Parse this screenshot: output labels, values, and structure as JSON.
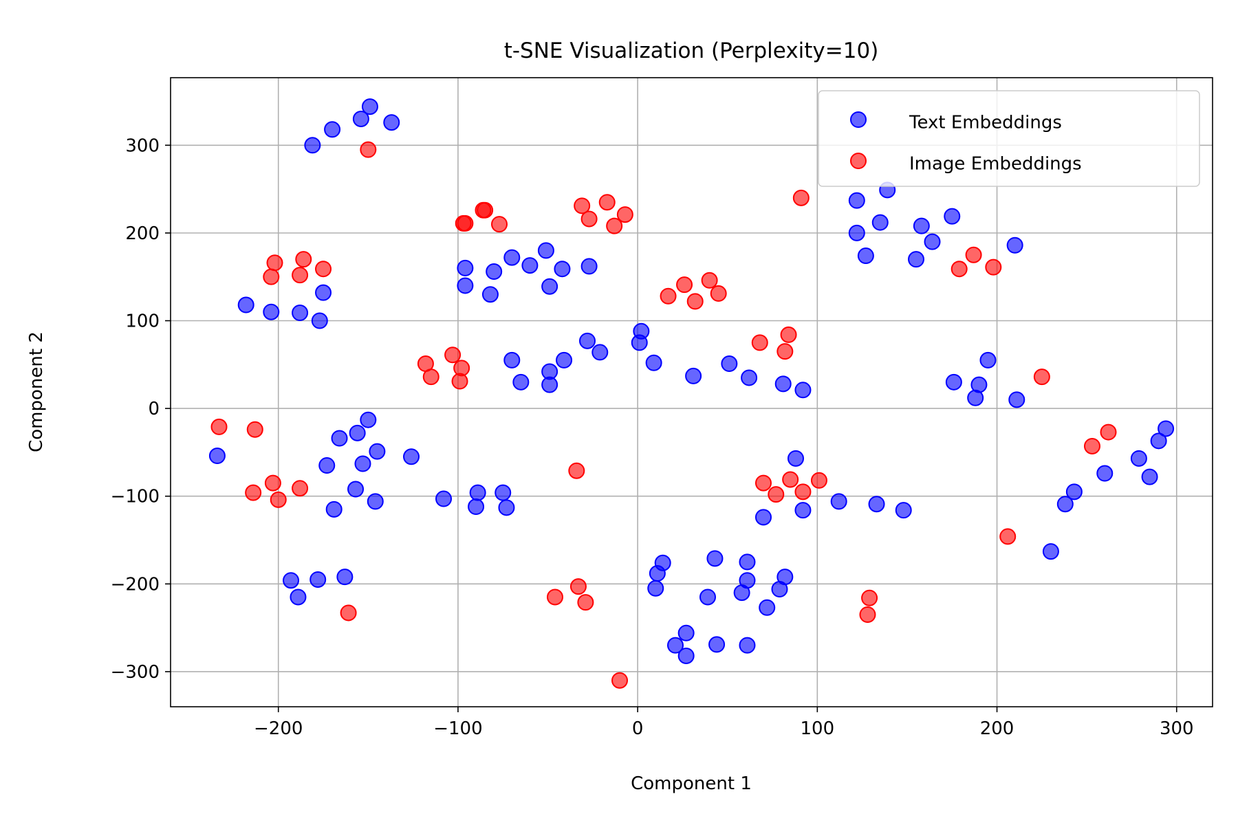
{
  "chart_data": {
    "type": "scatter",
    "title": "t-SNE Visualization (Perplexity=10)",
    "xlabel": "Component 1",
    "ylabel": "Component 2",
    "xlim": [
      -260,
      320
    ],
    "ylim": [
      -340,
      377
    ],
    "x_ticks": [
      -200,
      -100,
      0,
      100,
      200,
      300
    ],
    "y_ticks": [
      -300,
      -200,
      -100,
      0,
      100,
      200,
      300
    ],
    "x_tick_labels": [
      "−200",
      "−100",
      "0",
      "100",
      "200",
      "300"
    ],
    "y_tick_labels": [
      "−300",
      "−200",
      "−100",
      "0",
      "100",
      "200",
      "300"
    ],
    "grid": true,
    "legend_position": "top-right",
    "series": [
      {
        "name": "Text Embeddings",
        "color": "#0000ff",
        "points": [
          [
            -149,
            344
          ],
          [
            -154,
            330
          ],
          [
            -137,
            326
          ],
          [
            -170,
            318
          ],
          [
            -181,
            300
          ],
          [
            -218,
            118
          ],
          [
            -204,
            110
          ],
          [
            -175,
            132
          ],
          [
            -188,
            109
          ],
          [
            -177,
            100
          ],
          [
            -96,
            160
          ],
          [
            -96,
            140
          ],
          [
            -80,
            156
          ],
          [
            -70,
            172
          ],
          [
            -82,
            130
          ],
          [
            -60,
            163
          ],
          [
            -51,
            180
          ],
          [
            -42,
            159
          ],
          [
            -49,
            139
          ],
          [
            -27,
            162
          ],
          [
            -70,
            55
          ],
          [
            -65,
            30
          ],
          [
            -49,
            42
          ],
          [
            -49,
            27
          ],
          [
            -41,
            55
          ],
          [
            -28,
            77
          ],
          [
            -21,
            64
          ],
          [
            2,
            88
          ],
          [
            1,
            75
          ],
          [
            9,
            52
          ],
          [
            31,
            37
          ],
          [
            51,
            51
          ],
          [
            62,
            35
          ],
          [
            81,
            28
          ],
          [
            92,
            21
          ],
          [
            122,
            237
          ],
          [
            139,
            249
          ],
          [
            122,
            200
          ],
          [
            135,
            212
          ],
          [
            127,
            174
          ],
          [
            158,
            208
          ],
          [
            164,
            190
          ],
          [
            155,
            170
          ],
          [
            175,
            219
          ],
          [
            210,
            186
          ],
          [
            176,
            30
          ],
          [
            190,
            27
          ],
          [
            188,
            12
          ],
          [
            195,
            55
          ],
          [
            211,
            10
          ],
          [
            -234,
            -54
          ],
          [
            -166,
            -34
          ],
          [
            -156,
            -28
          ],
          [
            -150,
            -13
          ],
          [
            -153,
            -63
          ],
          [
            -145,
            -49
          ],
          [
            -173,
            -65
          ],
          [
            -157,
            -92
          ],
          [
            -146,
            -106
          ],
          [
            -126,
            -55
          ],
          [
            -169,
            -115
          ],
          [
            -108,
            -103
          ],
          [
            -89,
            -96
          ],
          [
            -90,
            -112
          ],
          [
            -75,
            -96
          ],
          [
            -73,
            -113
          ],
          [
            88,
            -57
          ],
          [
            92,
            -116
          ],
          [
            112,
            -106
          ],
          [
            133,
            -109
          ],
          [
            148,
            -116
          ],
          [
            70,
            -124
          ],
          [
            -193,
            -196
          ],
          [
            -189,
            -215
          ],
          [
            -178,
            -195
          ],
          [
            -163,
            -192
          ],
          [
            14,
            -176
          ],
          [
            11,
            -188
          ],
          [
            10,
            -205
          ],
          [
            43,
            -171
          ],
          [
            61,
            -175
          ],
          [
            61,
            -196
          ],
          [
            58,
            -210
          ],
          [
            39,
            -215
          ],
          [
            79,
            -206
          ],
          [
            82,
            -192
          ],
          [
            72,
            -227
          ],
          [
            27,
            -256
          ],
          [
            21,
            -270
          ],
          [
            27,
            -282
          ],
          [
            44,
            -269
          ],
          [
            61,
            -270
          ],
          [
            230,
            -163
          ],
          [
            238,
            -109
          ],
          [
            243,
            -95
          ],
          [
            260,
            -74
          ],
          [
            279,
            -57
          ],
          [
            285,
            -78
          ],
          [
            290,
            -37
          ],
          [
            294,
            -23
          ]
        ]
      },
      {
        "name": "Image Embeddings",
        "color": "#ff0000",
        "points": [
          [
            -150,
            295
          ],
          [
            -202,
            166
          ],
          [
            -204,
            150
          ],
          [
            -186,
            170
          ],
          [
            -188,
            152
          ],
          [
            -175,
            159
          ],
          [
            -97,
            211
          ],
          [
            -96,
            211
          ],
          [
            -86,
            226
          ],
          [
            -85,
            226
          ],
          [
            -77,
            210
          ],
          [
            -31,
            231
          ],
          [
            -27,
            216
          ],
          [
            -17,
            235
          ],
          [
            -13,
            208
          ],
          [
            -7,
            221
          ],
          [
            17,
            128
          ],
          [
            26,
            141
          ],
          [
            32,
            122
          ],
          [
            40,
            146
          ],
          [
            45,
            131
          ],
          [
            -118,
            51
          ],
          [
            -115,
            36
          ],
          [
            -103,
            61
          ],
          [
            -98,
            46
          ],
          [
            -99,
            31
          ],
          [
            68,
            75
          ],
          [
            84,
            84
          ],
          [
            82,
            65
          ],
          [
            91,
            240
          ],
          [
            187,
            175
          ],
          [
            179,
            159
          ],
          [
            198,
            161
          ],
          [
            225,
            36
          ],
          [
            -233,
            -21
          ],
          [
            -213,
            -24
          ],
          [
            -214,
            -96
          ],
          [
            -203,
            -85
          ],
          [
            -200,
            -104
          ],
          [
            -188,
            -91
          ],
          [
            -161,
            -233
          ],
          [
            -34,
            -71
          ],
          [
            -46,
            -215
          ],
          [
            -33,
            -203
          ],
          [
            -29,
            -221
          ],
          [
            -10,
            -310
          ],
          [
            70,
            -85
          ],
          [
            77,
            -98
          ],
          [
            85,
            -81
          ],
          [
            92,
            -95
          ],
          [
            101,
            -82
          ],
          [
            129,
            -216
          ],
          [
            128,
            -235
          ],
          [
            206,
            -146
          ],
          [
            253,
            -43
          ],
          [
            262,
            -27
          ]
        ]
      }
    ]
  }
}
